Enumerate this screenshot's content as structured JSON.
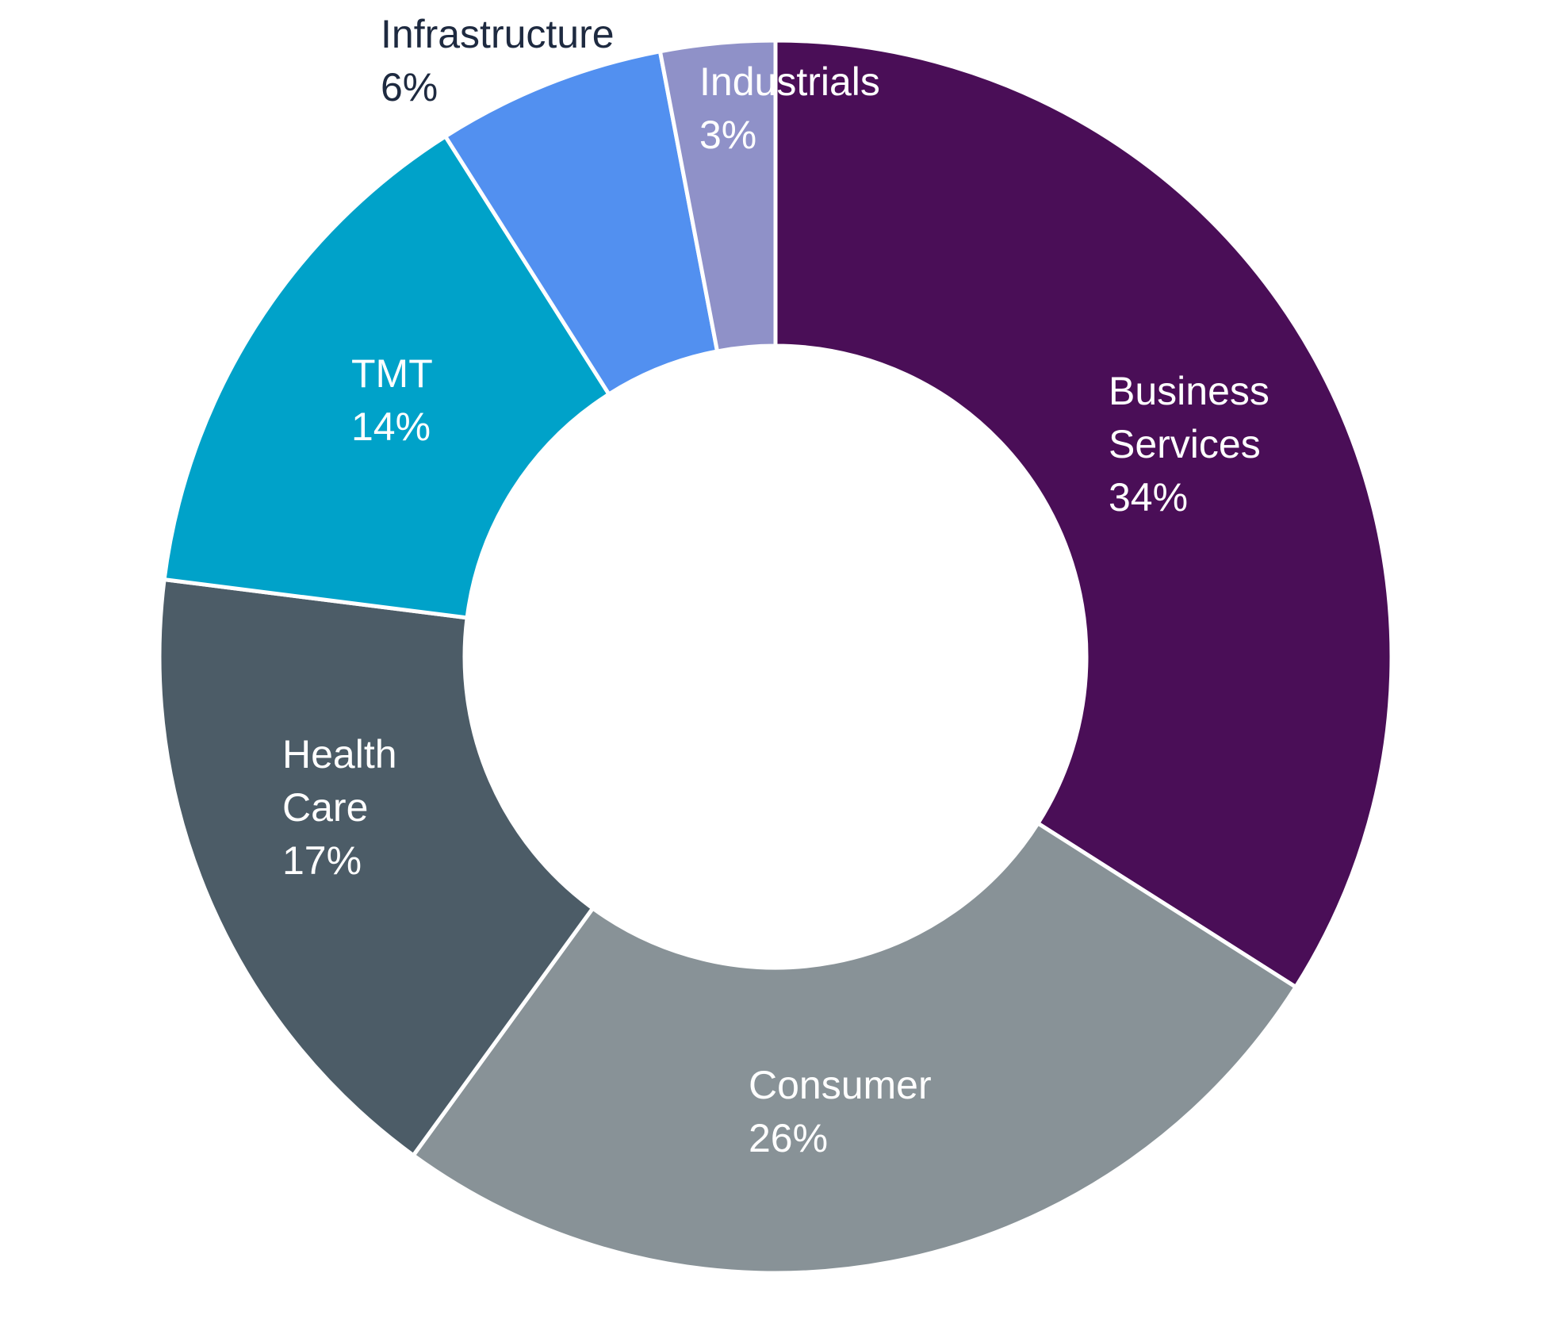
{
  "chart_data": {
    "type": "pie",
    "variant": "donut",
    "slices": [
      {
        "label_lines": [
          "Business",
          "Services"
        ],
        "value": 34,
        "value_label": "34%",
        "color": "#4a0e57",
        "label_color": "#ffffff"
      },
      {
        "label_lines": [
          "Consumer"
        ],
        "value": 26,
        "value_label": "26%",
        "color": "#889297",
        "label_color": "#ffffff"
      },
      {
        "label_lines": [
          "Health",
          "Care"
        ],
        "value": 17,
        "value_label": "17%",
        "color": "#4c5c67",
        "label_color": "#ffffff"
      },
      {
        "label_lines": [
          "TMT"
        ],
        "value": 14,
        "value_label": "14%",
        "color": "#00a2c9",
        "label_color": "#ffffff"
      },
      {
        "label_lines": [
          "Infrastructure"
        ],
        "value": 6,
        "value_label": "6%",
        "color": "#5290f0",
        "label_color": "#1e2a40"
      },
      {
        "label_lines": [
          "Industrials"
        ],
        "value": 3,
        "value_label": "3%",
        "color": "#8f91c8",
        "label_color": "#ffffff"
      }
    ],
    "start_angle": "12 o'clock",
    "direction": "clockwise",
    "legend": "none",
    "slice_separator_color": "#ffffff"
  }
}
